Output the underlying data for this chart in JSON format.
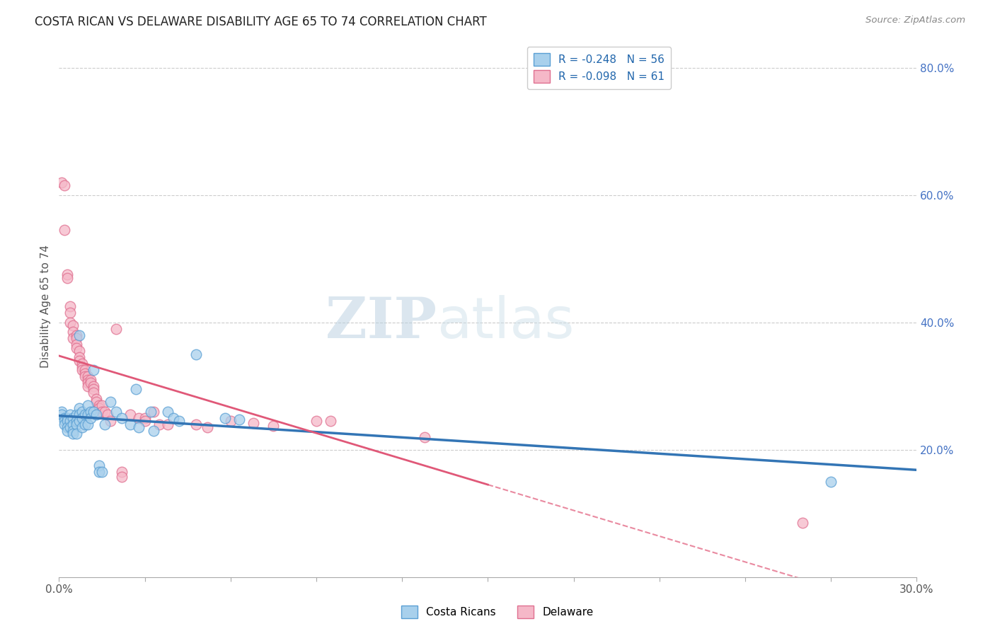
{
  "title": "COSTA RICAN VS DELAWARE DISABILITY AGE 65 TO 74 CORRELATION CHART",
  "source": "Source: ZipAtlas.com",
  "ylabel": "Disability Age 65 to 74",
  "legend_blue_label": "Costa Ricans",
  "legend_pink_label": "Delaware",
  "r_blue": -0.248,
  "n_blue": 56,
  "r_pink": -0.098,
  "n_pink": 61,
  "xlim": [
    0.0,
    0.3
  ],
  "ylim": [
    0.0,
    0.85
  ],
  "yticks_right": [
    0.2,
    0.4,
    0.6,
    0.8
  ],
  "blue_scatter_color": "#a8d0ec",
  "blue_edge_color": "#5a9fd4",
  "pink_scatter_color": "#f5b8c8",
  "pink_edge_color": "#e07090",
  "line_blue_color": "#3375b5",
  "line_pink_color": "#e05878",
  "watermark_zip": "ZIP",
  "watermark_atlas": "atlas",
  "blue_points": [
    [
      0.001,
      0.26
    ],
    [
      0.001,
      0.255
    ],
    [
      0.002,
      0.25
    ],
    [
      0.002,
      0.245
    ],
    [
      0.002,
      0.24
    ],
    [
      0.003,
      0.25
    ],
    [
      0.003,
      0.245
    ],
    [
      0.003,
      0.235
    ],
    [
      0.003,
      0.23
    ],
    [
      0.004,
      0.255
    ],
    [
      0.004,
      0.245
    ],
    [
      0.004,
      0.235
    ],
    [
      0.005,
      0.25
    ],
    [
      0.005,
      0.24
    ],
    [
      0.005,
      0.23
    ],
    [
      0.005,
      0.225
    ],
    [
      0.006,
      0.255
    ],
    [
      0.006,
      0.245
    ],
    [
      0.006,
      0.24
    ],
    [
      0.006,
      0.225
    ],
    [
      0.007,
      0.38
    ],
    [
      0.007,
      0.265
    ],
    [
      0.007,
      0.255
    ],
    [
      0.007,
      0.245
    ],
    [
      0.008,
      0.26
    ],
    [
      0.008,
      0.25
    ],
    [
      0.008,
      0.235
    ],
    [
      0.009,
      0.255
    ],
    [
      0.009,
      0.24
    ],
    [
      0.01,
      0.27
    ],
    [
      0.01,
      0.255
    ],
    [
      0.01,
      0.24
    ],
    [
      0.011,
      0.26
    ],
    [
      0.011,
      0.25
    ],
    [
      0.012,
      0.325
    ],
    [
      0.012,
      0.26
    ],
    [
      0.013,
      0.255
    ],
    [
      0.014,
      0.175
    ],
    [
      0.014,
      0.165
    ],
    [
      0.015,
      0.165
    ],
    [
      0.016,
      0.24
    ],
    [
      0.018,
      0.275
    ],
    [
      0.02,
      0.26
    ],
    [
      0.022,
      0.25
    ],
    [
      0.025,
      0.24
    ],
    [
      0.027,
      0.295
    ],
    [
      0.028,
      0.235
    ],
    [
      0.032,
      0.26
    ],
    [
      0.033,
      0.23
    ],
    [
      0.038,
      0.26
    ],
    [
      0.04,
      0.25
    ],
    [
      0.042,
      0.245
    ],
    [
      0.048,
      0.35
    ],
    [
      0.058,
      0.25
    ],
    [
      0.063,
      0.248
    ],
    [
      0.27,
      0.15
    ]
  ],
  "pink_points": [
    [
      0.001,
      0.62
    ],
    [
      0.002,
      0.615
    ],
    [
      0.002,
      0.545
    ],
    [
      0.003,
      0.475
    ],
    [
      0.003,
      0.47
    ],
    [
      0.004,
      0.425
    ],
    [
      0.004,
      0.415
    ],
    [
      0.004,
      0.4
    ],
    [
      0.005,
      0.395
    ],
    [
      0.005,
      0.385
    ],
    [
      0.005,
      0.375
    ],
    [
      0.006,
      0.38
    ],
    [
      0.006,
      0.375
    ],
    [
      0.006,
      0.365
    ],
    [
      0.006,
      0.36
    ],
    [
      0.007,
      0.355
    ],
    [
      0.007,
      0.345
    ],
    [
      0.007,
      0.34
    ],
    [
      0.008,
      0.335
    ],
    [
      0.008,
      0.33
    ],
    [
      0.008,
      0.325
    ],
    [
      0.009,
      0.325
    ],
    [
      0.009,
      0.32
    ],
    [
      0.009,
      0.315
    ],
    [
      0.01,
      0.315
    ],
    [
      0.01,
      0.31
    ],
    [
      0.01,
      0.305
    ],
    [
      0.01,
      0.3
    ],
    [
      0.011,
      0.31
    ],
    [
      0.011,
      0.305
    ],
    [
      0.012,
      0.3
    ],
    [
      0.012,
      0.295
    ],
    [
      0.012,
      0.29
    ],
    [
      0.013,
      0.28
    ],
    [
      0.013,
      0.275
    ],
    [
      0.014,
      0.27
    ],
    [
      0.014,
      0.265
    ],
    [
      0.015,
      0.27
    ],
    [
      0.015,
      0.26
    ],
    [
      0.016,
      0.26
    ],
    [
      0.017,
      0.255
    ],
    [
      0.018,
      0.245
    ],
    [
      0.02,
      0.39
    ],
    [
      0.022,
      0.165
    ],
    [
      0.022,
      0.158
    ],
    [
      0.025,
      0.255
    ],
    [
      0.028,
      0.25
    ],
    [
      0.03,
      0.25
    ],
    [
      0.03,
      0.245
    ],
    [
      0.033,
      0.26
    ],
    [
      0.035,
      0.24
    ],
    [
      0.038,
      0.24
    ],
    [
      0.048,
      0.24
    ],
    [
      0.052,
      0.235
    ],
    [
      0.06,
      0.245
    ],
    [
      0.068,
      0.242
    ],
    [
      0.075,
      0.238
    ],
    [
      0.09,
      0.245
    ],
    [
      0.095,
      0.245
    ],
    [
      0.128,
      0.22
    ],
    [
      0.26,
      0.085
    ]
  ]
}
